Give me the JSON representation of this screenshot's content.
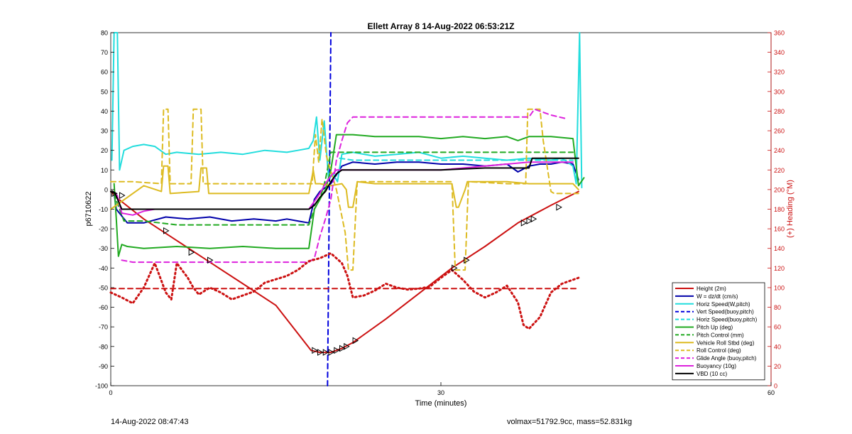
{
  "chart_data": {
    "type": "line",
    "title": "Ellett Array 8 14-Aug-2022 06:53:21Z",
    "xlabel": "Time (minutes)",
    "ylabel": "p6710622",
    "y2label": "(+) Heading (°M)",
    "xlim": [
      0,
      60
    ],
    "ylim": [
      -100,
      80
    ],
    "y2lim": [
      0,
      360
    ],
    "xticks": [
      0,
      30,
      60
    ],
    "yticks": [
      -100,
      -90,
      -80,
      -70,
      -60,
      -50,
      -40,
      -30,
      -20,
      -10,
      0,
      10,
      20,
      30,
      40,
      50,
      60,
      70,
      80
    ],
    "y2ticks": [
      0,
      20,
      40,
      60,
      80,
      100,
      120,
      140,
      160,
      180,
      200,
      220,
      240,
      260,
      280,
      300,
      320,
      340,
      360
    ],
    "grid": false,
    "legend_position": "bottom-right",
    "series": [
      {
        "name": "Height (2m)",
        "color": "#cc1111",
        "style": "solid",
        "x": [
          0,
          0.5,
          3,
          6,
          9,
          12,
          15,
          18.2,
          19,
          20,
          21,
          22,
          25,
          28,
          31,
          34,
          37,
          40,
          42.5
        ],
        "y": [
          -1,
          -4,
          -15,
          -26,
          -37,
          -48,
          -59,
          -82,
          -83,
          -83,
          -81,
          -78,
          -66,
          -53,
          -40,
          -29,
          -17,
          -8,
          -1
        ]
      },
      {
        "name": "W = dz/dt (cm/s)",
        "color": "#0000aa",
        "style": "solid",
        "x": [
          0.3,
          0.5,
          1.5,
          3,
          5,
          7,
          9,
          11,
          13,
          15,
          16,
          17,
          18,
          18.5,
          19,
          20,
          21,
          22,
          24,
          26,
          28,
          30,
          32,
          34,
          36,
          37,
          38,
          39,
          40,
          41,
          42,
          42.5
        ],
        "y": [
          -2,
          -10,
          -17,
          -17,
          -14,
          -15,
          -14,
          -16,
          -15,
          -16,
          -15,
          -16,
          -17,
          -5,
          -1,
          3,
          12,
          14,
          13,
          14,
          14,
          13,
          13,
          12,
          13,
          9,
          12,
          13,
          13,
          14,
          13,
          5
        ]
      },
      {
        "name": "Horiz Speed(W,pitch)",
        "color": "#22dddd",
        "style": "solid",
        "x": [
          0.1,
          0.3,
          0.6,
          0.8,
          1.2,
          2,
          3,
          4,
          5,
          6,
          8,
          10,
          12,
          14,
          16,
          17,
          18,
          18.4,
          18.7,
          19,
          19.4,
          19.8,
          20.2,
          20.6,
          21,
          22,
          24,
          26,
          28,
          30,
          32,
          34,
          36,
          38,
          40,
          41,
          42,
          42.3,
          42.6,
          42.8
        ],
        "y": [
          15,
          80,
          80,
          10,
          20,
          22,
          23,
          22,
          18,
          19,
          18,
          19,
          18,
          20,
          19,
          20,
          21,
          25,
          37,
          15,
          35,
          5,
          8,
          4,
          18,
          19,
          17,
          18,
          19,
          16,
          17,
          16,
          15,
          16,
          15,
          16,
          12,
          3,
          80,
          1
        ]
      },
      {
        "name": "Vert Speed(buoy,pitch)",
        "color": "#0000dd",
        "style": "dashed",
        "x": [
          19.7,
          20
        ],
        "y": [
          -100,
          80
        ]
      },
      {
        "name": "Horiz Speed(buoy,pitch)",
        "color": "#22dddd",
        "style": "dashed",
        "x": [
          20.8,
          22,
          26,
          30,
          34,
          38,
          42
        ],
        "y": [
          16,
          15,
          15,
          15,
          15,
          15,
          15
        ]
      },
      {
        "name": "Pitch Up (deg)",
        "color": "#22aa22",
        "style": "solid",
        "x": [
          0.3,
          0.5,
          0.7,
          1,
          1.5,
          3,
          6,
          9,
          12,
          15,
          18,
          18.5,
          19,
          19.5,
          20,
          20.5,
          22,
          24,
          26,
          28,
          30,
          32,
          34,
          36,
          37,
          38,
          40,
          42,
          42.5,
          43
        ],
        "y": [
          3,
          -15,
          -34,
          -28,
          -29,
          -30,
          -29,
          -30,
          -29,
          -30,
          -30,
          -10,
          -5,
          0,
          10,
          28,
          28,
          27,
          27,
          27,
          26,
          27,
          26,
          27,
          25,
          27,
          27,
          26,
          2,
          6
        ]
      },
      {
        "name": "Pitch Control (mm)",
        "color": "#22aa22",
        "style": "dashed",
        "x": [
          0.3,
          0.6,
          1.2,
          3,
          6,
          9,
          12,
          15,
          18,
          18.5,
          19,
          19.5,
          20,
          22,
          26,
          30,
          34,
          38,
          42
        ],
        "y": [
          -2,
          -7,
          -16,
          -16,
          -18,
          -18,
          -18,
          -18,
          -18,
          -10,
          -5,
          5,
          19,
          19,
          19,
          19,
          19,
          19,
          19
        ]
      },
      {
        "name": "Vehicle Roll Stbd (deg)",
        "color": "#ddbb22",
        "style": "solid",
        "x": [
          0,
          3,
          4.6,
          4.8,
          5.2,
          5.4,
          8,
          8.2,
          8.7,
          8.9,
          12,
          15,
          18,
          18.4,
          18.6,
          19,
          20,
          21,
          21.4,
          21.6,
          22,
          22.4,
          24,
          28,
          31,
          31.4,
          31.6,
          32.2,
          32.4,
          36,
          38,
          42,
          42.5
        ],
        "y": [
          -10,
          2,
          -1,
          12,
          12,
          -2,
          -1,
          11,
          11,
          -2,
          -2,
          -2,
          -2,
          10,
          3,
          3,
          2,
          3,
          0,
          -9,
          -9,
          4,
          3,
          3,
          3,
          -9,
          -9,
          0,
          4,
          4,
          3,
          3,
          0
        ]
      },
      {
        "name": "Roll Control (deg)",
        "color": "#ddbb22",
        "style": "dashed",
        "x": [
          0,
          2,
          4.6,
          4.8,
          5.2,
          5.4,
          7.3,
          7.5,
          8.2,
          8.4,
          18.3,
          18.6,
          18.9,
          19.2,
          19.6,
          20.5,
          21.3,
          21.6,
          22,
          22.4,
          28,
          31,
          31.3,
          31.6,
          32.2,
          32.5,
          36,
          37.7,
          37.9,
          39,
          39.3,
          40,
          40.3,
          42.5
        ],
        "y": [
          4,
          4,
          3,
          41,
          41,
          3,
          3,
          41,
          41,
          3,
          3,
          28,
          14,
          36,
          17,
          0,
          -22,
          -41,
          -41,
          4,
          4,
          4,
          -41,
          -41,
          -41,
          4,
          3,
          3,
          41,
          41,
          25,
          -1,
          -2,
          -2
        ]
      },
      {
        "name": "Glide Angle (buoy,pitch)",
        "color": "#dd22dd",
        "style": "dashed",
        "x": [
          1,
          2,
          3,
          6,
          9,
          12,
          15,
          17,
          18,
          18.5,
          19,
          19.5,
          20,
          20.5,
          21,
          21.5,
          22,
          26,
          30,
          34,
          38,
          38.5,
          40,
          41.5
        ],
        "y": [
          -36,
          -37,
          -37,
          -37,
          -37,
          -37,
          -37,
          -37,
          -37,
          -35,
          -24,
          -15,
          -5,
          15,
          25,
          34,
          37,
          37,
          37,
          37,
          37,
          41,
          38,
          36
        ]
      },
      {
        "name": "Buoyancy (10g)",
        "color": "#dd22dd",
        "style": "solid",
        "x": [
          0.2,
          0.6,
          1,
          2,
          3,
          4,
          18,
          18.5,
          19,
          19.5,
          20,
          20.5,
          22,
          30,
          38,
          40,
          42
        ],
        "y": [
          -1,
          -3,
          -12,
          -13,
          -11,
          -10,
          -10,
          -6,
          -2,
          3,
          7,
          10,
          10,
          10,
          14,
          14,
          14
        ]
      },
      {
        "name": "VBD (10 cc)",
        "color": "#000000",
        "style": "solid",
        "x": [
          0,
          0.4,
          1,
          3,
          6,
          9,
          12,
          15,
          18,
          18.5,
          19,
          19.5,
          20,
          20.5,
          21,
          22,
          26,
          30,
          34,
          38,
          38.3,
          40,
          42.5
        ],
        "y": [
          -1,
          -2,
          -10,
          -10,
          -10,
          -10,
          -10,
          -10,
          -10,
          -8,
          -4,
          -1,
          4,
          8,
          10,
          10,
          10,
          10,
          11,
          11,
          16,
          16,
          16
        ]
      },
      {
        "name": "Heading",
        "axis": "y2",
        "color": "#cc1111",
        "style": "dashed",
        "legend": false,
        "x": [
          0,
          42.5
        ],
        "y": [
          99,
          99
        ]
      },
      {
        "name": "Heading",
        "axis": "y2",
        "color": "#cc1111",
        "style": "dotted",
        "legend": false,
        "x": [
          0,
          1,
          2,
          3,
          4,
          5,
          5.5,
          6,
          7,
          7.5,
          8,
          9,
          10,
          11,
          12,
          13,
          14,
          16,
          17,
          18,
          19,
          20,
          21,
          21.5,
          22,
          23,
          24,
          25,
          26,
          27,
          28,
          29,
          30,
          31,
          32,
          33,
          34,
          35,
          36,
          37,
          37.5,
          38,
          39,
          40,
          41,
          42,
          42.5
        ],
        "y": [
          95,
          90,
          84,
          100,
          125,
          95,
          88,
          125,
          110,
          100,
          93,
          100,
          95,
          88,
          92,
          96,
          105,
          112,
          118,
          127,
          130,
          135,
          125,
          112,
          90,
          92,
          97,
          104,
          100,
          98,
          99,
          101,
          110,
          118,
          108,
          96,
          90,
          95,
          102,
          85,
          62,
          58,
          70,
          95,
          104,
          108,
          110
        ]
      }
    ],
    "markers": {
      "shape": "triangle",
      "x": [
        0.3,
        1,
        5,
        7.3,
        9,
        18.5,
        19,
        19.5,
        20,
        20.5,
        21,
        21.4,
        22.2,
        31.2,
        32.3,
        37.5,
        38,
        38.4,
        40.7
      ],
      "y": [
        -2,
        -3,
        -21,
        -32,
        -36,
        -82,
        -83,
        -83,
        -83,
        -82,
        -81,
        -80,
        -77,
        -40,
        -36,
        -17,
        -16,
        -15,
        -9
      ]
    }
  },
  "footer": {
    "timestamp": "14-Aug-2022 08:47:43",
    "mass_info": "volmax=51792.9cc, mass=52.831kg"
  }
}
